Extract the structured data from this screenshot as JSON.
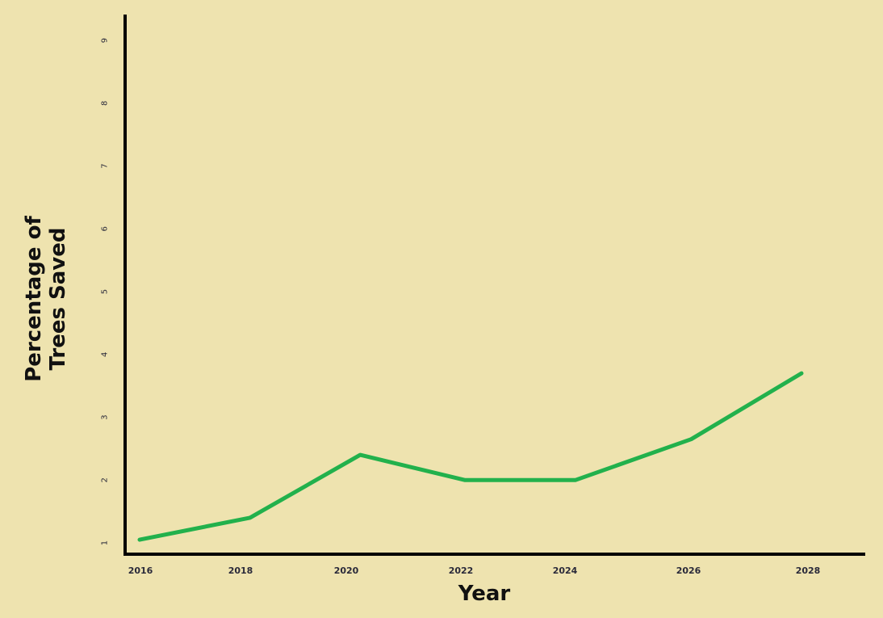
{
  "chart_data": {
    "type": "line",
    "title": "",
    "xlabel": "Year",
    "ylabel_lines": [
      "Percentage of",
      "Trees Saved"
    ],
    "x_ticks": [
      "2016",
      "2018",
      "2020",
      "2022",
      "2024",
      "2026",
      "2028"
    ],
    "y_ticks": [
      "1",
      "2",
      "3",
      "4",
      "5",
      "6",
      "7",
      "8",
      "9"
    ],
    "ylim": [
      1,
      9
    ],
    "series": [
      {
        "color": "#22B14C",
        "points": [
          {
            "x": 2016.0,
            "y": 1.05
          },
          {
            "x": 2018.0,
            "y": 1.4
          },
          {
            "x": 2020.0,
            "y": 2.4
          },
          {
            "x": 2021.9,
            "y": 2.0
          },
          {
            "x": 2023.9,
            "y": 2.0
          },
          {
            "x": 2026.0,
            "y": 2.65
          },
          {
            "x": 2028.0,
            "y": 3.7
          }
        ]
      }
    ],
    "grid": false,
    "legend": "none"
  },
  "colors": {
    "background": "#EEE3AF",
    "axis": "#000000",
    "line": "#22B14C"
  }
}
